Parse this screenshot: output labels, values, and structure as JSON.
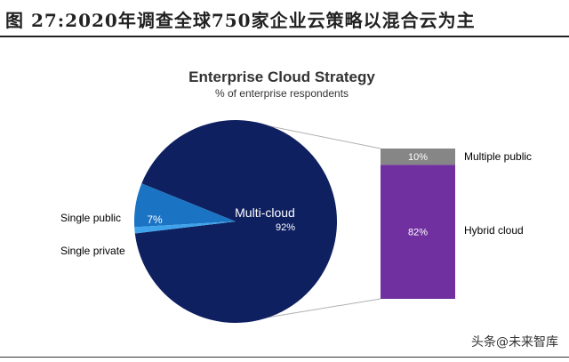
{
  "figure_caption": "图 27:2020年调查全球750家企业云策略以混合云为主",
  "watermark": "头条@未来智库",
  "colors": {
    "multi_cloud": "#0e2060",
    "single_public": "#1b73c4",
    "single_private": "#3ea3ea",
    "multiple_public": "#868686",
    "hybrid_cloud": "#7030a0",
    "connector": "#b0b0b0"
  },
  "chart_data": [
    {
      "type": "pie",
      "title": "Enterprise Cloud Strategy",
      "subtitle": "% of enterprise respondents",
      "slices": [
        {
          "label": "Multi-cloud",
          "value": 92,
          "value_label": "92%"
        },
        {
          "label": "Single public",
          "value": 7,
          "value_label": "7%"
        },
        {
          "label": "Single private",
          "value": 1,
          "value_label": ""
        }
      ]
    },
    {
      "type": "bar",
      "stacked": true,
      "segments": [
        {
          "label": "Multiple public",
          "value": 10,
          "value_label": "10%"
        },
        {
          "label": "Hybrid cloud",
          "value": 82,
          "value_label": "82%"
        }
      ]
    }
  ]
}
